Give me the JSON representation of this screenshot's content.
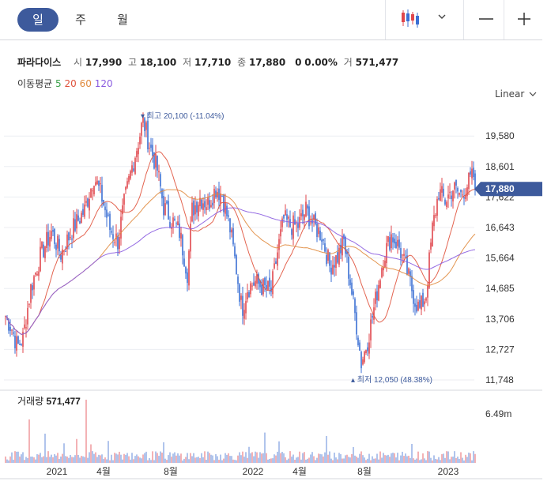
{
  "tabs": [
    {
      "label": "일",
      "active": true
    },
    {
      "label": "주",
      "active": false
    },
    {
      "label": "월",
      "active": false
    }
  ],
  "toolbar": {
    "chart_type_icon": "candlestick-icon",
    "dropdown_icon": "chevron-down-icon",
    "zoom_out_icon": "minus-icon",
    "zoom_in_icon": "plus-icon"
  },
  "stock": {
    "name": "파라다이스",
    "open_label": "시",
    "open": "17,990",
    "high_label": "고",
    "high": "18,100",
    "low_label": "저",
    "low": "17,710",
    "close_label": "종",
    "close": "17,880",
    "change": "0",
    "change_pct": "0.00%",
    "volume_label": "거",
    "volume": "571,477"
  },
  "moving_average": {
    "label": "이동평균",
    "periods": [
      {
        "label": "5",
        "color": "#3fa34d"
      },
      {
        "label": "20",
        "color": "#e0533d"
      },
      {
        "label": "60",
        "color": "#e08a3d"
      },
      {
        "label": "120",
        "color": "#8a5ce0"
      }
    ]
  },
  "scale_mode": "Linear",
  "chart_data": {
    "type": "candlestick",
    "price_axis": {
      "ticks": [
        11748,
        12727,
        13706,
        14685,
        15664,
        16643,
        17622,
        18601,
        19580
      ],
      "tick_labels": [
        "11,748",
        "12,727",
        "13,706",
        "14,685",
        "15,664",
        "16,643",
        "17,622",
        "18,601",
        "19,580"
      ],
      "range": [
        11748,
        20500
      ]
    },
    "current_price_label": "17,880",
    "current_price": 17880,
    "max_annotation": {
      "text": "최고 20,100 (-11.04%)",
      "value": 20100
    },
    "min_annotation": {
      "text": "최저 12,050 (48.38%)",
      "value": 12050
    },
    "volume_panel": {
      "label": "거래량",
      "value": "571,477",
      "axis_label": "6.49m"
    },
    "x_axis_labels": [
      "2021",
      "4월",
      "8월",
      "2022",
      "4월",
      "8월",
      "2023"
    ],
    "up_color": "#e0474c",
    "down_color": "#3b6fd4",
    "keypoints": [
      [
        0,
        13800
      ],
      [
        8,
        13400
      ],
      [
        15,
        12800
      ],
      [
        22,
        13100
      ],
      [
        32,
        14700
      ],
      [
        45,
        15800
      ],
      [
        58,
        16500
      ],
      [
        70,
        15800
      ],
      [
        85,
        16600
      ],
      [
        100,
        17200
      ],
      [
        112,
        18300
      ],
      [
        122,
        17600
      ],
      [
        132,
        16600
      ],
      [
        142,
        16200
      ],
      [
        150,
        17400
      ],
      [
        160,
        18600
      ],
      [
        168,
        19400
      ],
      [
        174,
        20100
      ],
      [
        182,
        19300
      ],
      [
        192,
        18500
      ],
      [
        200,
        17300
      ],
      [
        210,
        16900
      ],
      [
        220,
        16500
      ],
      [
        230,
        15200
      ],
      [
        236,
        17200
      ],
      [
        246,
        17600
      ],
      [
        256,
        17400
      ],
      [
        266,
        17900
      ],
      [
        274,
        17700
      ],
      [
        284,
        16600
      ],
      [
        292,
        15300
      ],
      [
        299,
        14000
      ],
      [
        306,
        14700
      ],
      [
        316,
        14900
      ],
      [
        326,
        14700
      ],
      [
        336,
        14600
      ],
      [
        345,
        16000
      ],
      [
        352,
        16900
      ],
      [
        360,
        16700
      ],
      [
        370,
        16700
      ],
      [
        380,
        17200
      ],
      [
        390,
        16700
      ],
      [
        400,
        16400
      ],
      [
        410,
        15400
      ],
      [
        420,
        15700
      ],
      [
        428,
        16200
      ],
      [
        436,
        14900
      ],
      [
        444,
        13500
      ],
      [
        450,
        12300
      ],
      [
        458,
        13000
      ],
      [
        468,
        14300
      ],
      [
        478,
        15700
      ],
      [
        488,
        16400
      ],
      [
        498,
        16000
      ],
      [
        508,
        15200
      ],
      [
        518,
        14300
      ],
      [
        524,
        14000
      ],
      [
        532,
        14500
      ],
      [
        540,
        16600
      ],
      [
        548,
        17800
      ],
      [
        556,
        17500
      ],
      [
        566,
        17900
      ],
      [
        576,
        17700
      ],
      [
        586,
        18100
      ],
      [
        592,
        18300
      ],
      [
        598,
        17880
      ]
    ]
  }
}
